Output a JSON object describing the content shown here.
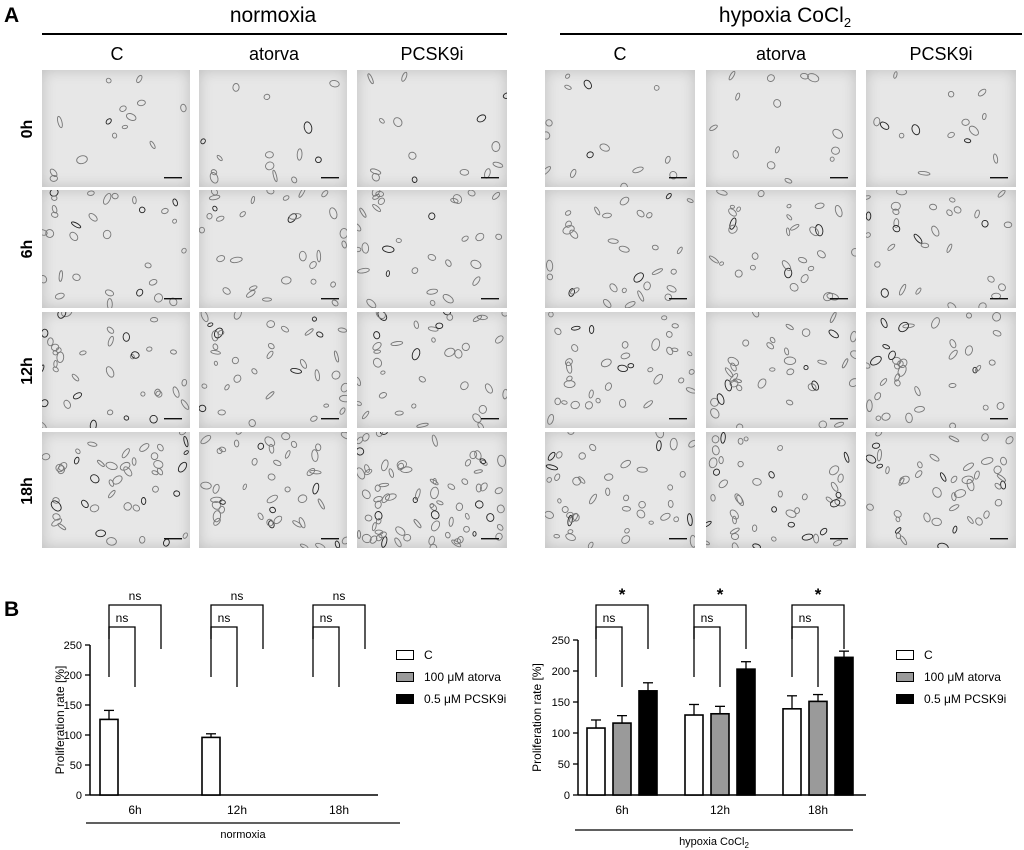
{
  "panel_a": {
    "letter": "A",
    "conditions": [
      {
        "title": "normoxia",
        "title_sub": ""
      },
      {
        "title": "hypoxia CoCl",
        "title_sub": "2"
      }
    ],
    "columns": [
      "C",
      "atorva",
      "PCSK9i"
    ],
    "rows": [
      "0h",
      "6h",
      "12h",
      "18h"
    ]
  },
  "panel_b": {
    "letter": "B"
  },
  "chart_data": [
    {
      "type": "bar",
      "categories": [
        "6h",
        "12h",
        "18h"
      ],
      "xgroup_label": "normoxia",
      "xgroup_label_sub": "",
      "ylabel": "Proliferation rate [%]",
      "ylim": [
        0,
        250
      ],
      "yticks": [
        "0",
        "50",
        "100",
        "150",
        "200",
        "250"
      ],
      "series": [
        {
          "name": "C",
          "fill": "#ffffff",
          "values": [
            126,
            96,
            0
          ],
          "errors": [
            15,
            6,
            0
          ]
        },
        {
          "name": "100 μM atorva",
          "fill": "#9a9a9a",
          "values": [
            0,
            0,
            0
          ],
          "errors": [
            0,
            0,
            0
          ]
        },
        {
          "name": "0.5 μM PCSK9i",
          "fill": "#000000",
          "values": [
            0,
            0,
            0
          ],
          "errors": [
            0,
            0,
            0
          ]
        }
      ],
      "annotations": [
        {
          "category": "6h",
          "pair": "C vs atorva",
          "label": "ns"
        },
        {
          "category": "6h",
          "pair": "C vs PCSK9i",
          "label": "ns"
        },
        {
          "category": "12h",
          "pair": "C vs atorva",
          "label": "ns"
        },
        {
          "category": "12h",
          "pair": "C vs PCSK9i",
          "label": "ns"
        },
        {
          "category": "18h",
          "pair": "C vs atorva",
          "label": "ns"
        },
        {
          "category": "18h",
          "pair": "C vs PCSK9i",
          "label": "ns"
        }
      ],
      "legend": [
        "C",
        "100 μM atorva",
        "0.5 μM PCSK9i"
      ]
    },
    {
      "type": "bar",
      "categories": [
        "6h",
        "12h",
        "18h"
      ],
      "xgroup_label": "hypoxia CoCl",
      "xgroup_label_sub": "2",
      "ylabel": "Proliferation rate [%]",
      "ylim": [
        0,
        250
      ],
      "yticks": [
        "0",
        "50",
        "100",
        "150",
        "200",
        "250"
      ],
      "series": [
        {
          "name": "C",
          "fill": "#ffffff",
          "values": [
            108,
            129,
            139
          ],
          "errors": [
            13,
            17,
            21
          ]
        },
        {
          "name": "100 μM atorva",
          "fill": "#9a9a9a",
          "values": [
            116,
            131,
            151
          ],
          "errors": [
            12,
            12,
            11
          ]
        },
        {
          "name": "0.5 μM PCSK9i",
          "fill": "#000000",
          "values": [
            168,
            203,
            222
          ],
          "errors": [
            13,
            12,
            10
          ]
        }
      ],
      "annotations": [
        {
          "category": "6h",
          "pair": "C vs atorva",
          "label": "ns"
        },
        {
          "category": "6h",
          "pair": "C vs PCSK9i",
          "label": "*"
        },
        {
          "category": "12h",
          "pair": "C vs atorva",
          "label": "ns"
        },
        {
          "category": "12h",
          "pair": "C vs PCSK9i",
          "label": "*"
        },
        {
          "category": "18h",
          "pair": "C vs atorva",
          "label": "ns"
        },
        {
          "category": "18h",
          "pair": "C vs PCSK9i",
          "label": "*"
        }
      ],
      "legend": [
        "C",
        "100 μM atorva",
        "0.5 μM PCSK9i"
      ]
    }
  ]
}
